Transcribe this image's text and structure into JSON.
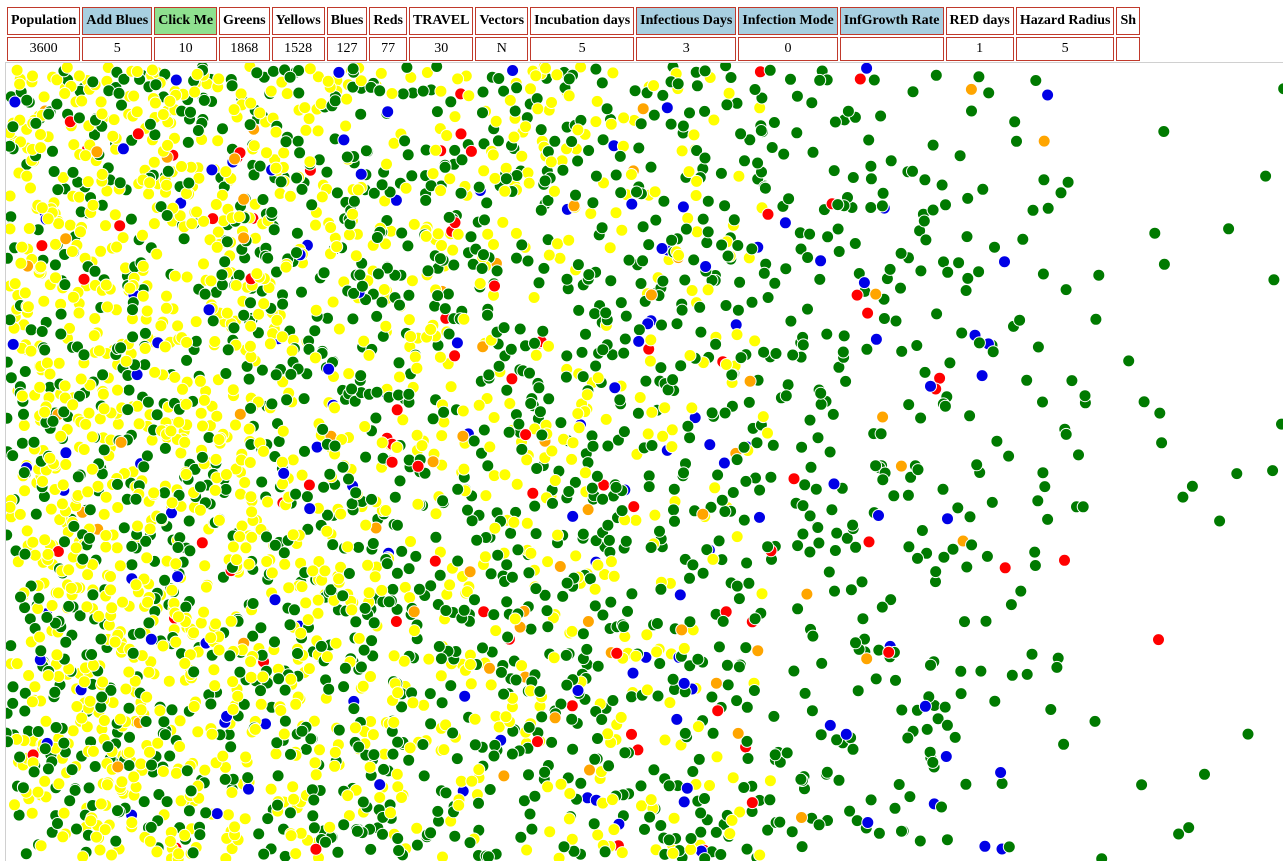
{
  "headers": [
    {
      "label": "Population",
      "value": "3600",
      "style": "plain",
      "clickable": false,
      "name": "population"
    },
    {
      "label": "Add Blues",
      "value": "5",
      "style": "hl-blue",
      "clickable": true,
      "name": "add-blues"
    },
    {
      "label": "Click Me",
      "value": "10",
      "style": "hl-green",
      "clickable": true,
      "name": "click-me"
    },
    {
      "label": "Greens",
      "value": "1868",
      "style": "plain",
      "clickable": false,
      "name": "greens"
    },
    {
      "label": "Yellows",
      "value": "1528",
      "style": "plain",
      "clickable": false,
      "name": "yellows"
    },
    {
      "label": "Blues",
      "value": "127",
      "style": "plain",
      "clickable": false,
      "name": "blues"
    },
    {
      "label": "Reds",
      "value": "77",
      "style": "plain",
      "clickable": false,
      "name": "reds"
    },
    {
      "label": "TRAVEL",
      "value": "30",
      "style": "plain",
      "clickable": false,
      "name": "travel"
    },
    {
      "label": "Vectors",
      "value": "N",
      "style": "plain",
      "clickable": false,
      "name": "vectors"
    },
    {
      "label": "Incubation days",
      "value": "5",
      "style": "plain",
      "clickable": false,
      "name": "incubation-days"
    },
    {
      "label": "Infectious Days",
      "value": "3",
      "style": "hl-blue",
      "clickable": true,
      "name": "infectious-days"
    },
    {
      "label": "Infection Mode",
      "value": "0",
      "style": "hl-blue",
      "clickable": true,
      "name": "infection-mode"
    },
    {
      "label": "InfGrowth Rate",
      "value": "",
      "style": "hl-blue",
      "clickable": true,
      "name": "infgrowth-rate"
    },
    {
      "label": "RED days",
      "value": "1",
      "style": "plain",
      "clickable": false,
      "name": "red-days"
    },
    {
      "label": "Hazard Radius",
      "value": "5",
      "style": "plain",
      "clickable": false,
      "name": "hazard-radius"
    },
    {
      "label": "Sh",
      "value": "",
      "style": "plain",
      "clickable": false,
      "name": "sh"
    }
  ],
  "colors": {
    "green": "#007a00",
    "yellow": "#ffff00",
    "blue": "#0000e6",
    "red": "#ff0000",
    "orange": "#ffa500"
  },
  "population": {
    "green": 1868,
    "yellow": 1528,
    "blue": 127,
    "red": 77
  }
}
